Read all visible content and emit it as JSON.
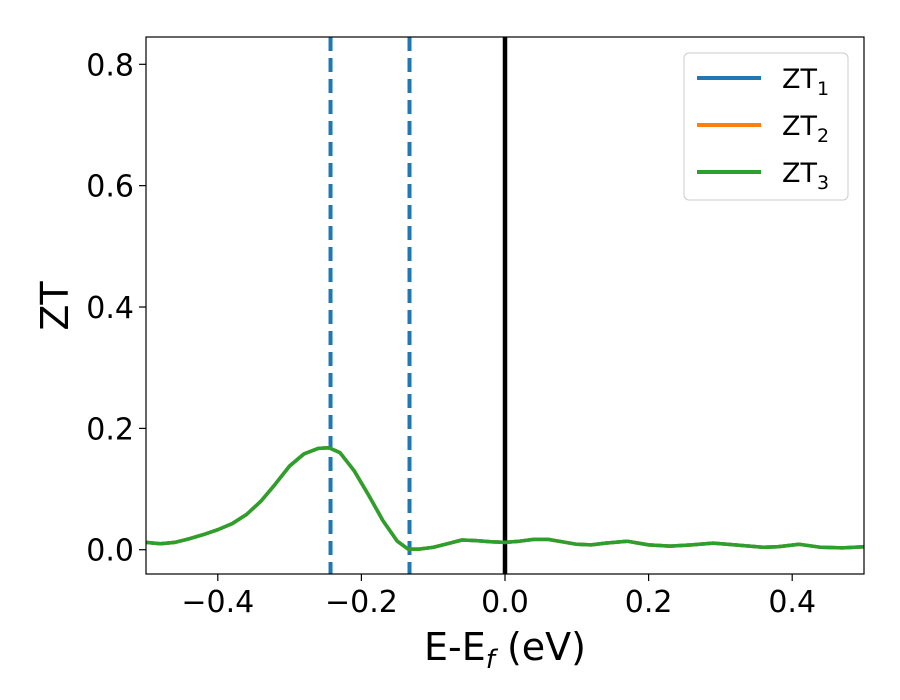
{
  "chart_data": {
    "type": "line",
    "xlabel": "E-E",
    "xlabel_sub": "f",
    "xlabel_unit": "(eV)",
    "ylabel": "ZT",
    "xlim": [
      -0.5,
      0.5
    ],
    "ylim": [
      -0.04,
      0.845
    ],
    "x_ticks": [
      -0.4,
      -0.2,
      0.0,
      0.2,
      0.4
    ],
    "x_tick_labels": [
      "−0.4",
      "−0.2",
      "0.0",
      "0.2",
      "0.4"
    ],
    "y_ticks": [
      0.0,
      0.2,
      0.4,
      0.6,
      0.8
    ],
    "y_tick_labels": [
      "0.0",
      "0.2",
      "0.4",
      "0.6",
      "0.8"
    ],
    "grid": false,
    "legend_placement": "top-right",
    "vlines": [
      {
        "x": -0.243,
        "style": "dashed",
        "color": "#1f77b4"
      },
      {
        "x": -0.133,
        "style": "dashed",
        "color": "#1f77b4"
      },
      {
        "x": 0.0,
        "style": "solid",
        "color": "#000000"
      }
    ],
    "series": [
      {
        "name": "ZT",
        "name_sub": "1",
        "color": "#1f77b4",
        "x": [
          -0.5,
          -0.48,
          -0.46,
          -0.44,
          -0.42,
          -0.4,
          -0.38,
          -0.36,
          -0.34,
          -0.32,
          -0.3,
          -0.28,
          -0.26,
          -0.245,
          -0.23,
          -0.21,
          -0.19,
          -0.17,
          -0.15,
          -0.135,
          -0.12,
          -0.1,
          -0.08,
          -0.06,
          -0.04,
          -0.02,
          0.0,
          0.02,
          0.04,
          0.06,
          0.08,
          0.1,
          0.12,
          0.14,
          0.17,
          0.2,
          0.23,
          0.26,
          0.29,
          0.32,
          0.36,
          0.38,
          0.41,
          0.44,
          0.47,
          0.5
        ],
        "values": [
          0.012,
          0.01,
          0.012,
          0.018,
          0.025,
          0.033,
          0.043,
          0.058,
          0.08,
          0.108,
          0.138,
          0.158,
          0.167,
          0.168,
          0.16,
          0.13,
          0.09,
          0.048,
          0.014,
          0.001,
          0.001,
          0.004,
          0.01,
          0.016,
          0.015,
          0.013,
          0.012,
          0.014,
          0.017,
          0.017,
          0.013,
          0.009,
          0.008,
          0.011,
          0.014,
          0.008,
          0.006,
          0.008,
          0.011,
          0.008,
          0.004,
          0.005,
          0.009,
          0.004,
          0.003,
          0.005
        ]
      },
      {
        "name": "ZT",
        "name_sub": "2",
        "color": "#ff7f0e",
        "x": [
          -0.5,
          -0.48,
          -0.46,
          -0.44,
          -0.42,
          -0.4,
          -0.38,
          -0.36,
          -0.34,
          -0.32,
          -0.3,
          -0.28,
          -0.26,
          -0.245,
          -0.23,
          -0.21,
          -0.19,
          -0.17,
          -0.15,
          -0.135,
          -0.12,
          -0.1,
          -0.08,
          -0.06,
          -0.04,
          -0.02,
          0.0,
          0.02,
          0.04,
          0.06,
          0.08,
          0.1,
          0.12,
          0.14,
          0.17,
          0.2,
          0.23,
          0.26,
          0.29,
          0.32,
          0.36,
          0.38,
          0.41,
          0.44,
          0.47,
          0.5
        ],
        "values": [
          0.012,
          0.01,
          0.012,
          0.018,
          0.025,
          0.033,
          0.043,
          0.058,
          0.08,
          0.108,
          0.138,
          0.158,
          0.167,
          0.168,
          0.16,
          0.13,
          0.09,
          0.048,
          0.014,
          0.001,
          0.001,
          0.004,
          0.01,
          0.016,
          0.015,
          0.013,
          0.012,
          0.014,
          0.017,
          0.017,
          0.013,
          0.009,
          0.008,
          0.011,
          0.014,
          0.008,
          0.006,
          0.008,
          0.011,
          0.008,
          0.004,
          0.005,
          0.009,
          0.004,
          0.003,
          0.005
        ]
      },
      {
        "name": "ZT",
        "name_sub": "3",
        "color": "#2ca02c",
        "x": [
          -0.5,
          -0.48,
          -0.46,
          -0.44,
          -0.42,
          -0.4,
          -0.38,
          -0.36,
          -0.34,
          -0.32,
          -0.3,
          -0.28,
          -0.26,
          -0.245,
          -0.23,
          -0.21,
          -0.19,
          -0.17,
          -0.15,
          -0.135,
          -0.12,
          -0.1,
          -0.08,
          -0.06,
          -0.04,
          -0.02,
          0.0,
          0.02,
          0.04,
          0.06,
          0.08,
          0.1,
          0.12,
          0.14,
          0.17,
          0.2,
          0.23,
          0.26,
          0.29,
          0.32,
          0.36,
          0.38,
          0.41,
          0.44,
          0.47,
          0.5
        ],
        "values": [
          0.012,
          0.01,
          0.012,
          0.018,
          0.025,
          0.033,
          0.043,
          0.058,
          0.08,
          0.108,
          0.138,
          0.158,
          0.167,
          0.168,
          0.16,
          0.13,
          0.09,
          0.048,
          0.014,
          0.001,
          0.001,
          0.004,
          0.01,
          0.016,
          0.015,
          0.013,
          0.012,
          0.014,
          0.017,
          0.017,
          0.013,
          0.009,
          0.008,
          0.011,
          0.014,
          0.008,
          0.006,
          0.008,
          0.011,
          0.008,
          0.004,
          0.005,
          0.009,
          0.004,
          0.003,
          0.005
        ]
      }
    ]
  }
}
